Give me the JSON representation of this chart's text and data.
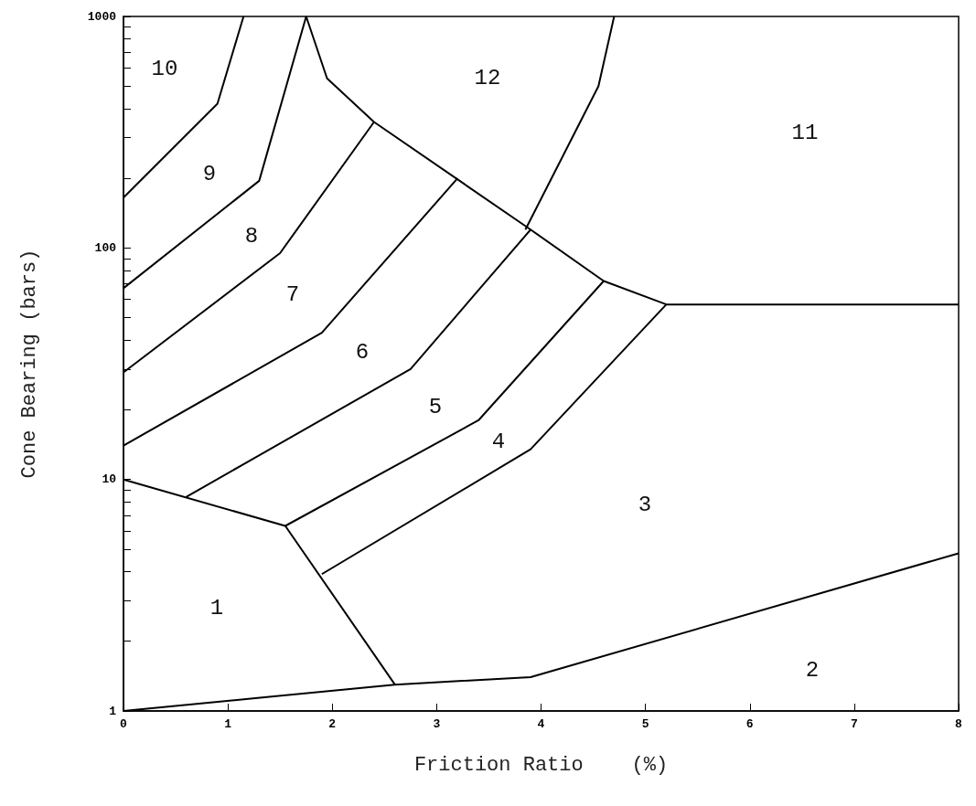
{
  "chart_data": {
    "type": "line",
    "xlabel": "Friction Ratio    (%)",
    "ylabel": "Cone Bearing (bars)",
    "log": "y",
    "marker": "none",
    "line_style": "solid",
    "xlim": [
      0,
      8
    ],
    "xticks": [
      0,
      1,
      2,
      3,
      4,
      5,
      6,
      7,
      8
    ],
    "ylim": [
      1,
      1000
    ],
    "yticks": [
      1,
      {
        "value": 2,
        "label": null
      },
      {
        "value": 3,
        "label": null
      },
      {
        "value": 4,
        "label": null
      },
      {
        "value": 5,
        "label": null
      },
      {
        "value": 6,
        "label": null
      },
      {
        "value": 7,
        "label": null
      },
      {
        "value": 8,
        "label": null
      },
      {
        "value": 9,
        "label": null
      },
      10,
      {
        "value": 20,
        "label": null
      },
      {
        "value": 30,
        "label": null
      },
      {
        "value": 40,
        "label": null
      },
      {
        "value": 50,
        "label": null
      },
      {
        "value": 60,
        "label": null
      },
      {
        "value": 70,
        "label": null
      },
      {
        "value": 80,
        "label": null
      },
      {
        "value": 90,
        "label": null
      },
      100,
      {
        "value": 200,
        "label": null
      },
      {
        "value": 300,
        "label": null
      },
      {
        "value": 400,
        "label": null
      },
      {
        "value": 500,
        "label": null
      },
      {
        "value": 600,
        "label": null
      },
      {
        "value": 700,
        "label": null
      },
      {
        "value": 800,
        "label": null
      },
      {
        "value": 900,
        "label": null
      },
      1000
    ],
    "series": [
      {
        "color": "#000000",
        "x": [
          0,
          2.6,
          3.9,
          8
        ],
        "values": [
          1,
          1.3,
          1.4,
          4.8
        ]
      },
      {
        "color": "#000000",
        "x": [
          0,
          1.55,
          2.6
        ],
        "values": [
          10,
          6.3,
          1.3
        ]
      },
      {
        "color": "#000000",
        "x": [
          1.9,
          3.9,
          5.2,
          8
        ],
        "values": [
          3.9,
          13.5,
          57,
          57
        ]
      },
      {
        "color": "#000000",
        "x": [
          1.55,
          3.4,
          4.6
        ],
        "values": [
          6.3,
          18,
          72
        ]
      },
      {
        "color": "#000000",
        "x": [
          0.6,
          2.75,
          3.9
        ],
        "values": [
          8.4,
          30,
          120
        ]
      },
      {
        "color": "#000000",
        "x": [
          0,
          1.9,
          3.2
        ],
        "values": [
          14,
          43,
          200
        ]
      },
      {
        "color": "#000000",
        "x": [
          0,
          1.5,
          2.4
        ],
        "values": [
          29,
          95,
          350
        ]
      },
      {
        "color": "#000000",
        "x": [
          0,
          1.3,
          1.75
        ],
        "values": [
          67,
          195,
          1000
        ]
      },
      {
        "color": "#000000",
        "x": [
          0,
          0.9,
          1.15
        ],
        "values": [
          165,
          420,
          1000
        ]
      },
      {
        "color": "#000000",
        "x": [
          1.75,
          1.95,
          2.4,
          3.9,
          4.6,
          5.2
        ],
        "values": [
          1000,
          540,
          350,
          120,
          72,
          57
        ]
      },
      {
        "color": "#000000",
        "x": [
          3.85,
          4.55,
          4.7
        ],
        "values": [
          120,
          500,
          1000
        ]
      }
    ],
    "annotations": [
      "1",
      "2",
      "3",
      "4",
      "5",
      "6",
      "7",
      "8",
      "9",
      "10",
      "11",
      "12"
    ]
  }
}
